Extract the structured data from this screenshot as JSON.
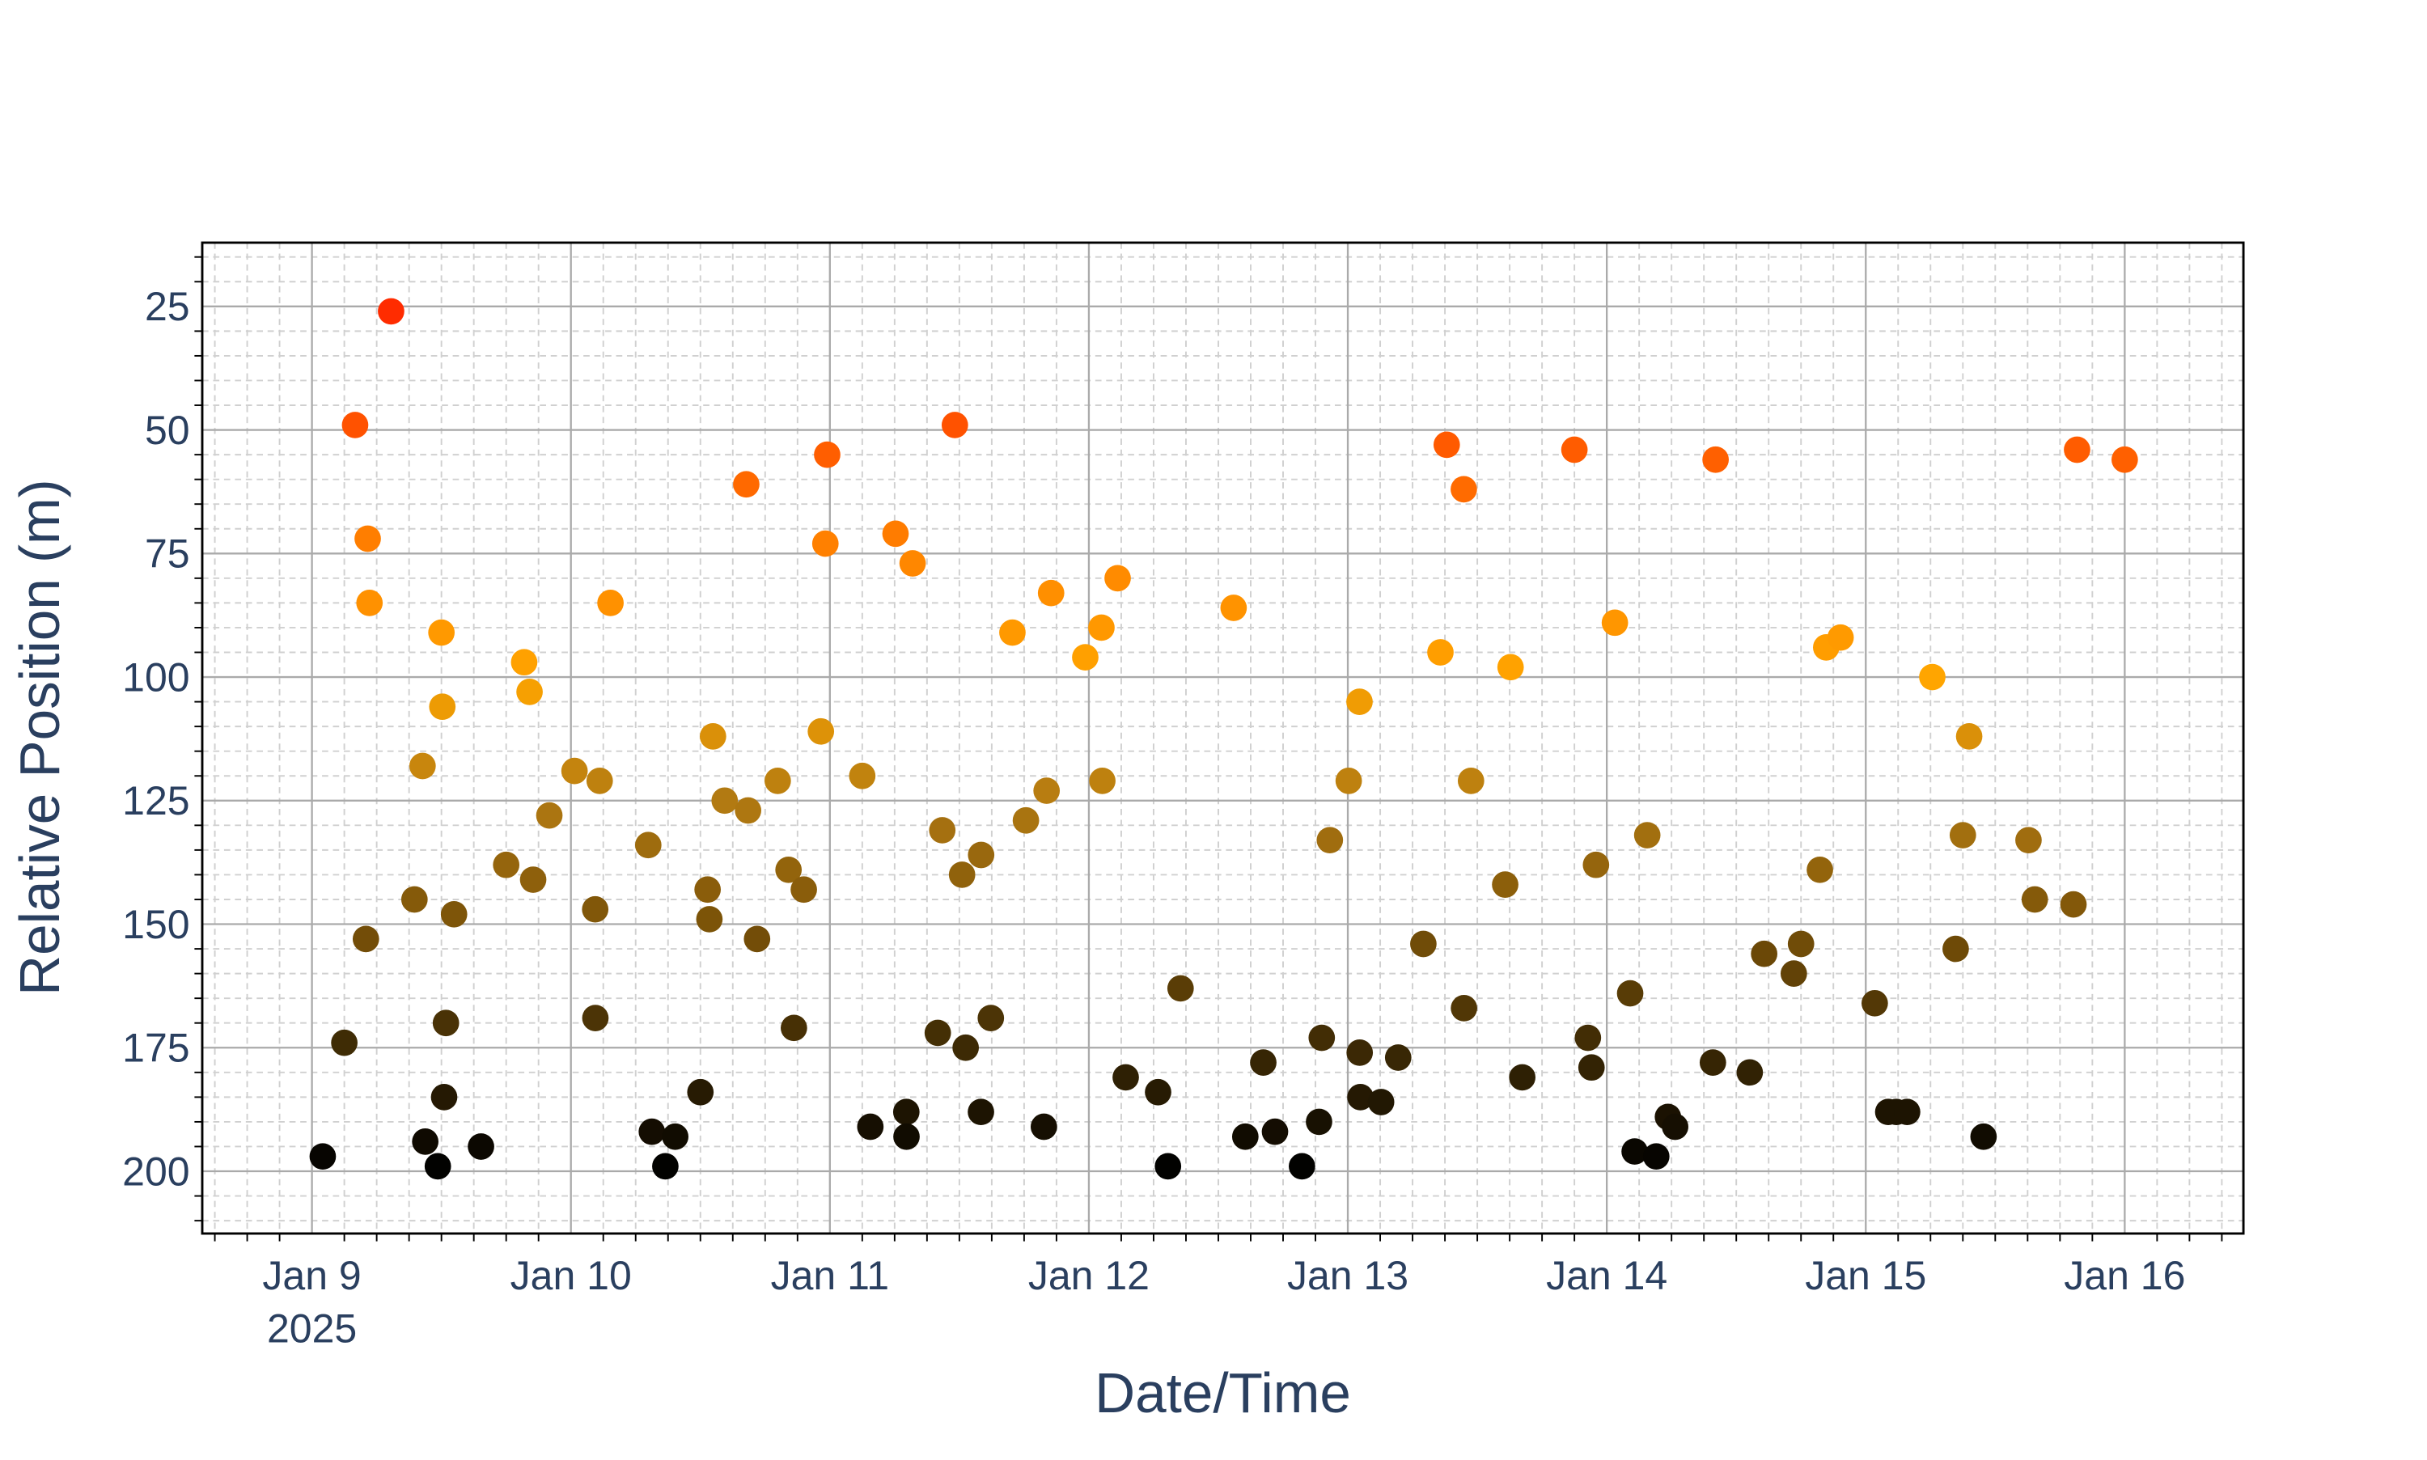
{
  "chart_data": {
    "type": "scatter",
    "x_label": "Date/Time",
    "y_label": "Relative Position (m)",
    "xlim": [
      "2025-01-08T13:50",
      "2025-01-16T11:00"
    ],
    "ylim": [
      12.1,
      212.6
    ],
    "y_reversed": true,
    "xticks": [
      {
        "value": "2025-01-09T00:00",
        "label": "Jan 9",
        "year": "2025"
      },
      {
        "value": "2025-01-10T00:00",
        "label": "Jan 10"
      },
      {
        "value": "2025-01-11T00:00",
        "label": "Jan 11"
      },
      {
        "value": "2025-01-12T00:00",
        "label": "Jan 12"
      },
      {
        "value": "2025-01-13T00:00",
        "label": "Jan 13"
      },
      {
        "value": "2025-01-14T00:00",
        "label": "Jan 14"
      },
      {
        "value": "2025-01-15T00:00",
        "label": "Jan 15"
      },
      {
        "value": "2025-01-16T00:00",
        "label": "Jan 16"
      }
    ],
    "yticks": [
      25,
      50,
      75,
      100,
      125,
      150,
      175,
      200
    ],
    "grid": true,
    "minor_grid": {
      "y_step": 5,
      "x_step_hours": 3
    },
    "colorscale": [
      [
        200,
        "#000000"
      ],
      [
        175,
        "#3d2a05"
      ],
      [
        150,
        "#7a5208"
      ],
      [
        125,
        "#b27a12"
      ],
      [
        100,
        "#ffa500"
      ],
      [
        75,
        "#ff8400"
      ],
      [
        50,
        "#ff5400"
      ],
      [
        25,
        "#ff2a00"
      ]
    ],
    "x": [
      "2025-01-09T01:00",
      "2025-01-09T03:00",
      "2025-01-09T04:00",
      "2025-01-09T05:00",
      "2025-01-09T05:10",
      "2025-01-09T05:20",
      "2025-01-09T07:20",
      "2025-01-09T09:30",
      "2025-01-09T10:15",
      "2025-01-09T10:30",
      "2025-01-09T11:40",
      "2025-01-09T12:00",
      "2025-01-09T12:05",
      "2025-01-09T12:15",
      "2025-01-09T12:25",
      "2025-01-09T13:10",
      "2025-01-09T15:40",
      "2025-01-09T18:00",
      "2025-01-09T19:40",
      "2025-01-09T20:10",
      "2025-01-09T20:30",
      "2025-01-09T22:00",
      "2025-01-10T00:20",
      "2025-01-10T02:15",
      "2025-01-10T02:16",
      "2025-01-10T02:40",
      "2025-01-10T03:40",
      "2025-01-10T07:10",
      "2025-01-10T07:30",
      "2025-01-10T08:45",
      "2025-01-10T09:40",
      "2025-01-10T12:00",
      "2025-01-10T12:40",
      "2025-01-10T12:50",
      "2025-01-10T13:10",
      "2025-01-10T14:15",
      "2025-01-10T16:15",
      "2025-01-10T16:25",
      "2025-01-10T17:15",
      "2025-01-10T19:10",
      "2025-01-10T20:10",
      "2025-01-10T20:40",
      "2025-01-10T21:35",
      "2025-01-10T23:10",
      "2025-01-10T23:35",
      "2025-01-10T23:45",
      "2025-01-11T03:00",
      "2025-01-11T03:45",
      "2025-01-11T06:05",
      "2025-01-11T07:05",
      "2025-01-11T07:06",
      "2025-01-11T07:40",
      "2025-01-11T10:00",
      "2025-01-11T10:25",
      "2025-01-11T11:35",
      "2025-01-11T12:15",
      "2025-01-11T12:35",
      "2025-01-11T14:00",
      "2025-01-11T14:01",
      "2025-01-11T14:55",
      "2025-01-11T16:55",
      "2025-01-11T18:10",
      "2025-01-11T19:50",
      "2025-01-11T20:05",
      "2025-01-11T20:30",
      "2025-01-11T23:40",
      "2025-01-12T01:10",
      "2025-01-12T01:15",
      "2025-01-12T02:40",
      "2025-01-12T03:25",
      "2025-01-12T06:25",
      "2025-01-12T07:20",
      "2025-01-12T08:30",
      "2025-01-12T13:25",
      "2025-01-12T14:30",
      "2025-01-12T16:10",
      "2025-01-12T17:15",
      "2025-01-12T19:45",
      "2025-01-12T21:20",
      "2025-01-12T21:35",
      "2025-01-12T22:20",
      "2025-01-13T00:05",
      "2025-01-13T01:05",
      "2025-01-13T01:06",
      "2025-01-13T01:10",
      "2025-01-13T03:05",
      "2025-01-13T04:40",
      "2025-01-13T07:00",
      "2025-01-13T08:35",
      "2025-01-13T09:10",
      "2025-01-13T10:45",
      "2025-01-13T10:46",
      "2025-01-13T11:25",
      "2025-01-13T14:35",
      "2025-01-13T15:05",
      "2025-01-13T16:10",
      "2025-01-13T21:00",
      "2025-01-13T22:15",
      "2025-01-13T22:35",
      "2025-01-13T23:00",
      "2025-01-14T00:45",
      "2025-01-14T02:10",
      "2025-01-14T02:35",
      "2025-01-14T03:45",
      "2025-01-14T04:35",
      "2025-01-14T05:40",
      "2025-01-14T06:20",
      "2025-01-14T09:50",
      "2025-01-14T10:05",
      "2025-01-14T13:15",
      "2025-01-14T14:35",
      "2025-01-14T17:20",
      "2025-01-14T18:00",
      "2025-01-14T19:45",
      "2025-01-14T20:20",
      "2025-01-14T21:40",
      "2025-01-15T00:50",
      "2025-01-15T02:05",
      "2025-01-15T02:50",
      "2025-01-15T03:50",
      "2025-01-15T06:10",
      "2025-01-15T08:20",
      "2025-01-15T09:00",
      "2025-01-15T09:35",
      "2025-01-15T10:55",
      "2025-01-15T15:05",
      "2025-01-15T15:40",
      "2025-01-15T19:15",
      "2025-01-15T19:35",
      "2025-01-16T00:00"
    ],
    "values": [
      197,
      174,
      49,
      153,
      72,
      85,
      26,
      145,
      118,
      194,
      199,
      91,
      106,
      185,
      170,
      148,
      195,
      138,
      97,
      103,
      141,
      128,
      119,
      147,
      169,
      121,
      85,
      134,
      192,
      199,
      193,
      184,
      143,
      149,
      112,
      125,
      61,
      127,
      153,
      121,
      139,
      171,
      143,
      111,
      73,
      55,
      120,
      191,
      71,
      188,
      193,
      77,
      172,
      131,
      49,
      140,
      175,
      188,
      136,
      169,
      91,
      129,
      191,
      123,
      83,
      96,
      90,
      121,
      80,
      181,
      184,
      199,
      163,
      86,
      193,
      178,
      192,
      199,
      190,
      173,
      133,
      121,
      105,
      176,
      185,
      186,
      177,
      154,
      95,
      53,
      62,
      167,
      121,
      142,
      98,
      181,
      54,
      173,
      179,
      138,
      89,
      164,
      196,
      132,
      197,
      189,
      191,
      178,
      56,
      180,
      156,
      160,
      154,
      139,
      94,
      92,
      166,
      188,
      188,
      188,
      100,
      155,
      132,
      112,
      193,
      133,
      145,
      146,
      54,
      56
    ]
  }
}
